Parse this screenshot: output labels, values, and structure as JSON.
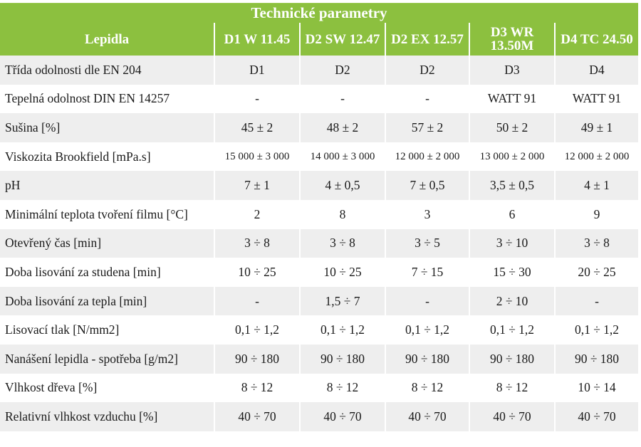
{
  "title": "Technické parametry",
  "header": {
    "row_label": "Lepidla",
    "columns": [
      "D1 W 11.45",
      "D2 SW 12.47",
      "D2 EX 12.57",
      "D3 WR 13.50M",
      "D4 TC 24.50"
    ]
  },
  "rows": [
    {
      "label": "Třída odolnosti dle EN 204",
      "values": [
        "D1",
        "D2",
        "D2",
        "D3",
        "D4"
      ]
    },
    {
      "label": "Tepelná odolnost DIN EN 14257",
      "values": [
        "-",
        "-",
        "-",
        "WATT 91",
        "WATT 91"
      ]
    },
    {
      "label": "Sušina [%]",
      "values": [
        "45 ± 2",
        "48 ± 2",
        "57 ± 2",
        "50 ± 2",
        "49 ± 1"
      ]
    },
    {
      "label": "Viskozita Brookfield [mPa.s]",
      "values": [
        "15 000 ± 3 000",
        "14 000 ± 3 000",
        "12 000 ± 2 000",
        "13 000 ± 2 000",
        "12 000 ± 2 000"
      ]
    },
    {
      "label": "pH",
      "values": [
        "7 ± 1",
        "4 ± 0,5",
        "7 ± 0,5",
        "3,5 ± 0,5",
        "4 ± 1"
      ]
    },
    {
      "label": "Minimální teplota tvoření filmu [°C]",
      "values": [
        "2",
        "8",
        "3",
        "6",
        "9"
      ]
    },
    {
      "label": "Otevřený čas [min]",
      "values": [
        "3 ÷ 8",
        "3 ÷ 8",
        "3 ÷ 5",
        "3 ÷ 10",
        "3 ÷ 8"
      ]
    },
    {
      "label": "Doba lisování za studena [min]",
      "values": [
        "10 ÷ 25",
        "10 ÷ 25",
        "7 ÷ 15",
        "15 ÷ 30",
        "20 ÷ 25"
      ]
    },
    {
      "label": "Doba lisování za tepla [min]",
      "values": [
        "-",
        "1,5 ÷ 7",
        "-",
        "2 ÷ 10",
        "-"
      ]
    },
    {
      "label": "Lisovací tlak [N/mm2]",
      "values": [
        "0,1 ÷ 1,2",
        "0,1 ÷ 1,2",
        "0,1 ÷ 1,2",
        "0,1 ÷ 1,2",
        "0,1 ÷ 1,2"
      ]
    },
    {
      "label": "Nanášení lepidla - spotřeba [g/m2]",
      "values": [
        "90 ÷ 180",
        "90 ÷ 180",
        "90 ÷ 180",
        "90 ÷ 180",
        "90 ÷ 180"
      ]
    },
    {
      "label": "Vlhkost dřeva [%]",
      "values": [
        "8 ÷ 12",
        "8 ÷ 12",
        "8 ÷ 12",
        "8 ÷ 12",
        "10 ÷ 14"
      ]
    },
    {
      "label": "Relativní vlhkost vzduchu [%]",
      "values": [
        "40 ÷ 70",
        "40 ÷ 70",
        "40 ÷ 70",
        "40 ÷ 70",
        "40 ÷ 70"
      ]
    }
  ],
  "colors": {
    "header_green": "#8cc03f",
    "row_shade": "#eeeeee",
    "header_text": "#ffffff"
  }
}
